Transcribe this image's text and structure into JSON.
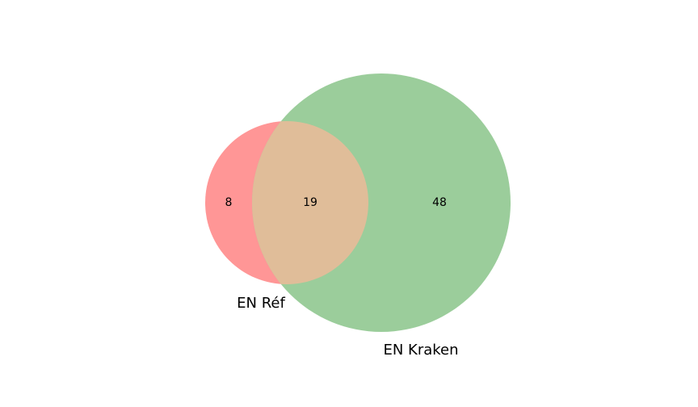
{
  "venn": {
    "sets": [
      {
        "name": "EN Réf",
        "color": "#ff9696"
      },
      {
        "name": "EN Kraken",
        "color": "#9bcd9b"
      }
    ],
    "overlap_color": "#e0bd99",
    "counts": {
      "only_ref": "8",
      "both": "19",
      "only_kraken": "48"
    }
  }
}
